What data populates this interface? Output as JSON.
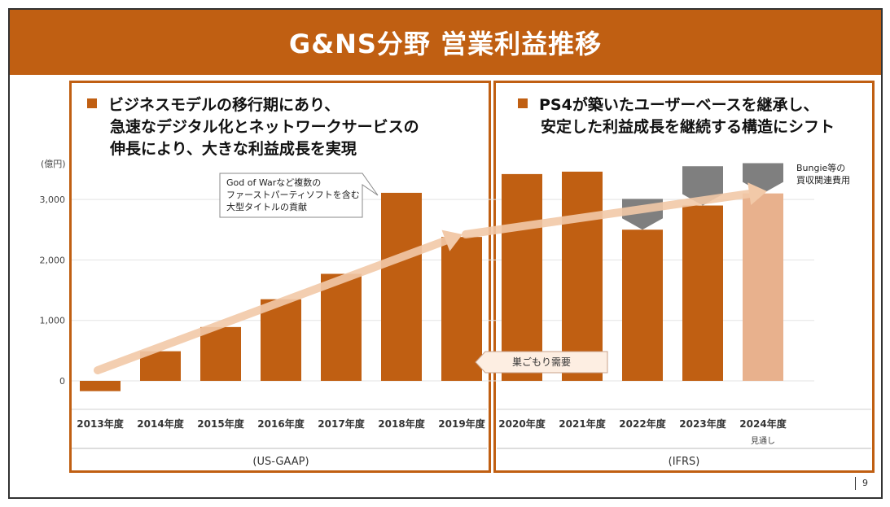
{
  "slide": {
    "title": "G&NS分野 営業利益推移",
    "page_number": "9"
  },
  "colors": {
    "accent": "#c05f12",
    "forecast": "#e8b18d",
    "cost": "#7f7f7f",
    "arrow": "#f2c9a8"
  },
  "left_panel": {
    "bullet_lines": [
      "ビジネスモデルの移行期にあり、",
      "急速なデジタル化とネットワークサービスの",
      "伸長により、大きな利益成長を実現"
    ],
    "callout_lines": [
      "God of Warなど複数の",
      "ファーストパーティソフトを含む",
      "大型タイトルの貢献"
    ],
    "standard": "(US-GAAP)"
  },
  "right_panel": {
    "bullet_lines": [
      "PS4が築いたユーザーベースを継承し、",
      "安定した利益成長を継続する構造にシフト"
    ],
    "bungie_note_lines": [
      "Bungie等の",
      "買収関連費用"
    ],
    "standard": "(IFRS)",
    "forecast_note": "見通し"
  },
  "stay_home_label": "巣ごもり需要",
  "chart_data": {
    "type": "bar",
    "title": "G&NS分野 営業利益推移",
    "ylabel": "(億円)",
    "xlabel": "",
    "ylim": [
      -300,
      3500
    ],
    "yticks": [
      0,
      1000,
      2000,
      3000
    ],
    "ytick_labels": [
      "0",
      "1,000",
      "2,000",
      "3,000"
    ],
    "grid": true,
    "categories": [
      "2013年度",
      "2014年度",
      "2015年度",
      "2016年度",
      "2017年度",
      "2018年度",
      "2019年度",
      "2020年度",
      "2021年度",
      "2022年度",
      "2023年度",
      "2024年度"
    ],
    "series": [
      {
        "name": "営業利益",
        "values": [
          -170,
          490,
          890,
          1350,
          1770,
          3110,
          2380,
          3420,
          3460,
          2500,
          2900,
          3100
        ]
      },
      {
        "name": "買収関連費用",
        "values": [
          0,
          0,
          0,
          0,
          0,
          0,
          0,
          0,
          0,
          510,
          650,
          500
        ]
      }
    ],
    "forecast_categories": [
      "2024年度"
    ]
  }
}
